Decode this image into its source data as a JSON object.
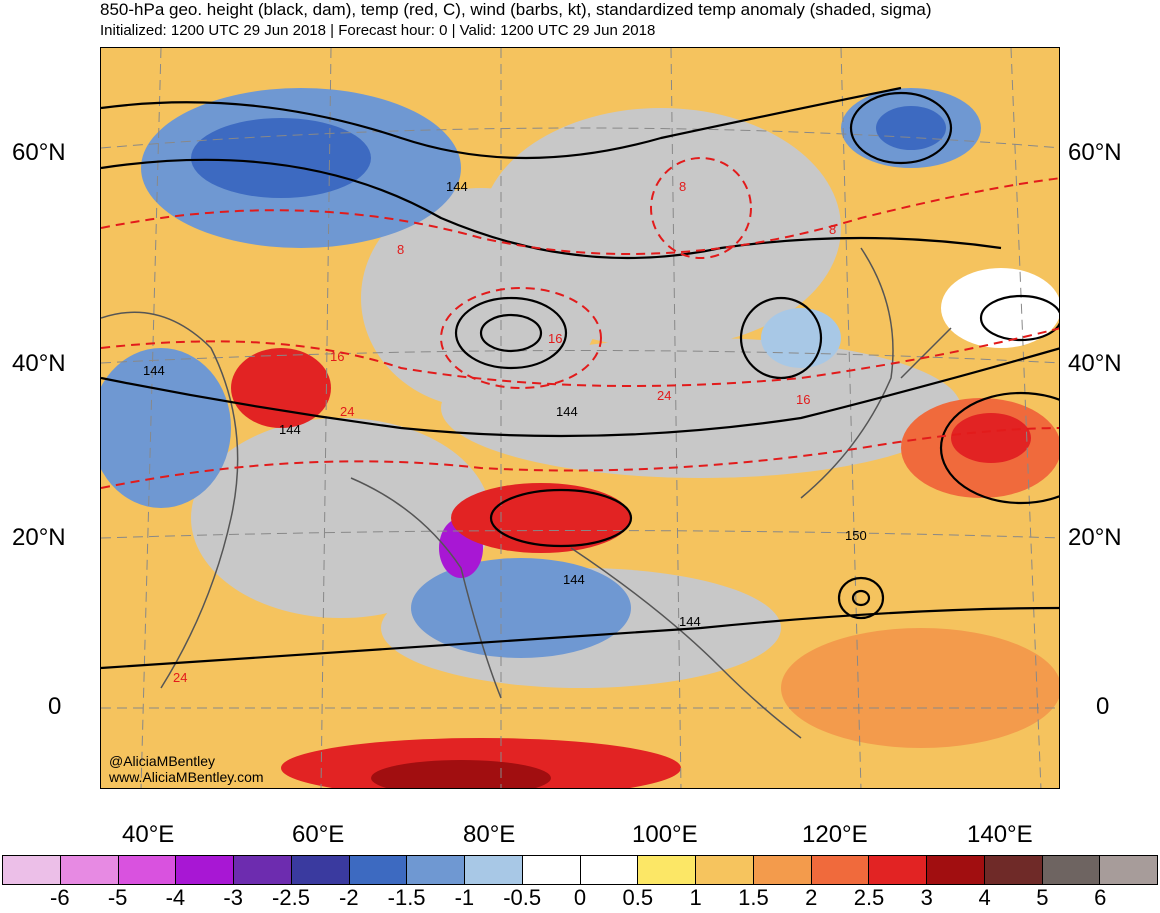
{
  "header": {
    "title": "850-hPa geo. height (black, dam), temp (red, C), wind (barbs, kt), standardized temp anomaly (shaded, sigma)",
    "subtitle": "Initialized: 1200 UTC 29 Jun 2018 | Forecast hour: 0 | Valid: 1200 UTC 29 Jun 2018"
  },
  "map": {
    "lat_labels": [
      "60°N",
      "40°N",
      "20°N",
      "0"
    ],
    "lon_labels": [
      "40°E",
      "60°E",
      "80°E",
      "100°E",
      "120°E",
      "140°E"
    ],
    "credit_line1": "@AliciaMBentley",
    "credit_line2": "www.AliciaMBentley.com",
    "height_contour_labels": [
      "144",
      "144",
      "144",
      "144",
      "144",
      "144",
      "150"
    ],
    "temp_contour_labels": [
      "8",
      "8",
      "8",
      "16",
      "16",
      "16",
      "24",
      "24",
      "24"
    ]
  },
  "colorbar": {
    "colors": [
      "#ecbfe8",
      "#e78ae3",
      "#d952df",
      "#a817d4",
      "#6d2caf",
      "#3a3a9f",
      "#3d6ac1",
      "#6f98d2",
      "#a8c8e6",
      "#ffffff",
      "#ffffff",
      "#fce766",
      "#f6c45e",
      "#f39b4c",
      "#f06a3c",
      "#e22323",
      "#a10e10",
      "#6f2a28",
      "#6e6461",
      "#a79c9a"
    ],
    "ticks": [
      "-6",
      "-5",
      "-4",
      "-3",
      "-2.5",
      "-2",
      "-1.5",
      "-1",
      "-0.5",
      "0",
      "0.5",
      "1",
      "1.5",
      "2",
      "2.5",
      "3",
      "4",
      "5",
      "6"
    ]
  }
}
